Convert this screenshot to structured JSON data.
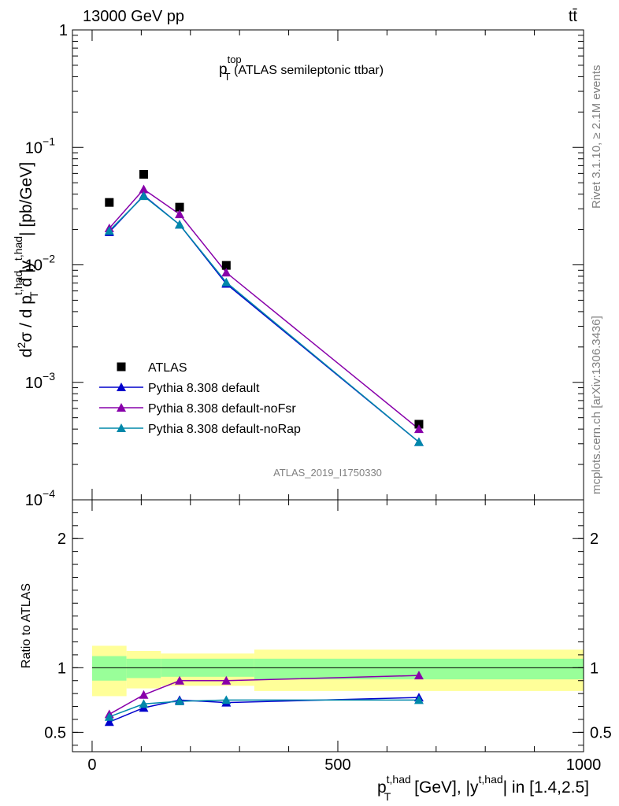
{
  "header": {
    "energy_label": "13000 GeV pp",
    "process_label": "tt̄"
  },
  "side_labels": {
    "rivet": "Rivet 3.1.10, ≥ 2.1M events",
    "mcplots": "mcplots.cern.ch [arXiv:1306.3436]"
  },
  "analysis_id": "ATLAS_2019_I1750330",
  "colors": {
    "data": "#000000",
    "default": "#0000cc",
    "noFsr": "#8800aa",
    "noRap": "#0088aa",
    "band_inner": "#99ff99",
    "band_outer": "#ffff99"
  },
  "chart_data": [
    {
      "type": "scatter",
      "title": {
        "main": "p",
        "sup": "top",
        "sub": "T",
        "rest": " (ATLAS semileptonic ttbar)"
      },
      "ylabel": "d²σ / d p_T^{t,had} d |y^{t,had}| [pb/GeV]",
      "yscale": "log",
      "ylim": [
        0.0001,
        1
      ],
      "xlim": [
        -40,
        1000
      ],
      "ytick_labels": [
        {
          "base": "10",
          "exp": "−4",
          "value": 0.0001
        },
        {
          "base": "10",
          "exp": "−3",
          "value": 0.001
        },
        {
          "base": "10",
          "exp": "−2",
          "value": 0.01
        },
        {
          "base": "10",
          "exp": "−1",
          "value": 0.1
        },
        {
          "base": "1",
          "exp": "",
          "value": 1
        }
      ],
      "x": [
        35,
        105,
        178,
        273,
        665
      ],
      "data_bins": [
        [
          0,
          70
        ],
        [
          70,
          140
        ],
        [
          140,
          215
        ],
        [
          215,
          330
        ],
        [
          330,
          1000
        ]
      ],
      "series": [
        {
          "name": "ATLAS",
          "marker": "square",
          "values": [
            0.034,
            0.059,
            0.031,
            0.0099,
            0.00044
          ]
        },
        {
          "name": "Pythia 8.308 default",
          "marker": "triangle",
          "values": [
            0.019,
            0.039,
            0.022,
            0.0069,
            0.00031
          ]
        },
        {
          "name": "Pythia 8.308 default-noFsr",
          "marker": "triangle",
          "values": [
            0.0205,
            0.044,
            0.027,
            0.0086,
            0.0004
          ]
        },
        {
          "name": "Pythia 8.308 default-noRap",
          "marker": "triangle",
          "values": [
            0.0195,
            0.0385,
            0.022,
            0.0071,
            0.00031
          ]
        }
      ]
    },
    {
      "type": "line",
      "ylabel": "Ratio to ATLAS",
      "ylim": [
        0.35,
        2.3
      ],
      "yticks": [
        "0.5",
        "1",
        "2"
      ],
      "ytick_values": [
        0.5,
        1,
        2
      ],
      "xlabel": {
        "p": "p",
        "sub": "T",
        "sup": "t,had",
        "unit": " [GeV], |y",
        "sup2": "t,had",
        "rest": "| in [1.4,2.5]"
      },
      "xticks": [
        "0",
        "500",
        "1000"
      ],
      "xtick_values": [
        0,
        500,
        1000
      ],
      "bands": [
        {
          "x0": 0,
          "x1": 70,
          "inner": [
            0.9,
            1.09
          ],
          "outer": [
            0.78,
            1.17
          ]
        },
        {
          "x0": 70,
          "x1": 140,
          "inner": [
            0.92,
            1.07
          ],
          "outer": [
            0.84,
            1.13
          ]
        },
        {
          "x0": 140,
          "x1": 330,
          "inner": [
            0.93,
            1.07
          ],
          "outer": [
            0.86,
            1.11
          ]
        },
        {
          "x0": 330,
          "x1": 1000,
          "inner": [
            0.91,
            1.07
          ],
          "outer": [
            0.82,
            1.14
          ]
        }
      ],
      "x": [
        35,
        105,
        178,
        273,
        665
      ],
      "series": [
        {
          "name": "Pythia 8.308 default",
          "values": [
            0.58,
            0.69,
            0.75,
            0.73,
            0.77
          ]
        },
        {
          "name": "Pythia 8.308 default-noFsr",
          "values": [
            0.64,
            0.79,
            0.9,
            0.9,
            0.94
          ]
        },
        {
          "name": "Pythia 8.308 default-noRap",
          "values": [
            0.62,
            0.72,
            0.74,
            0.75,
            0.75
          ]
        }
      ]
    }
  ]
}
